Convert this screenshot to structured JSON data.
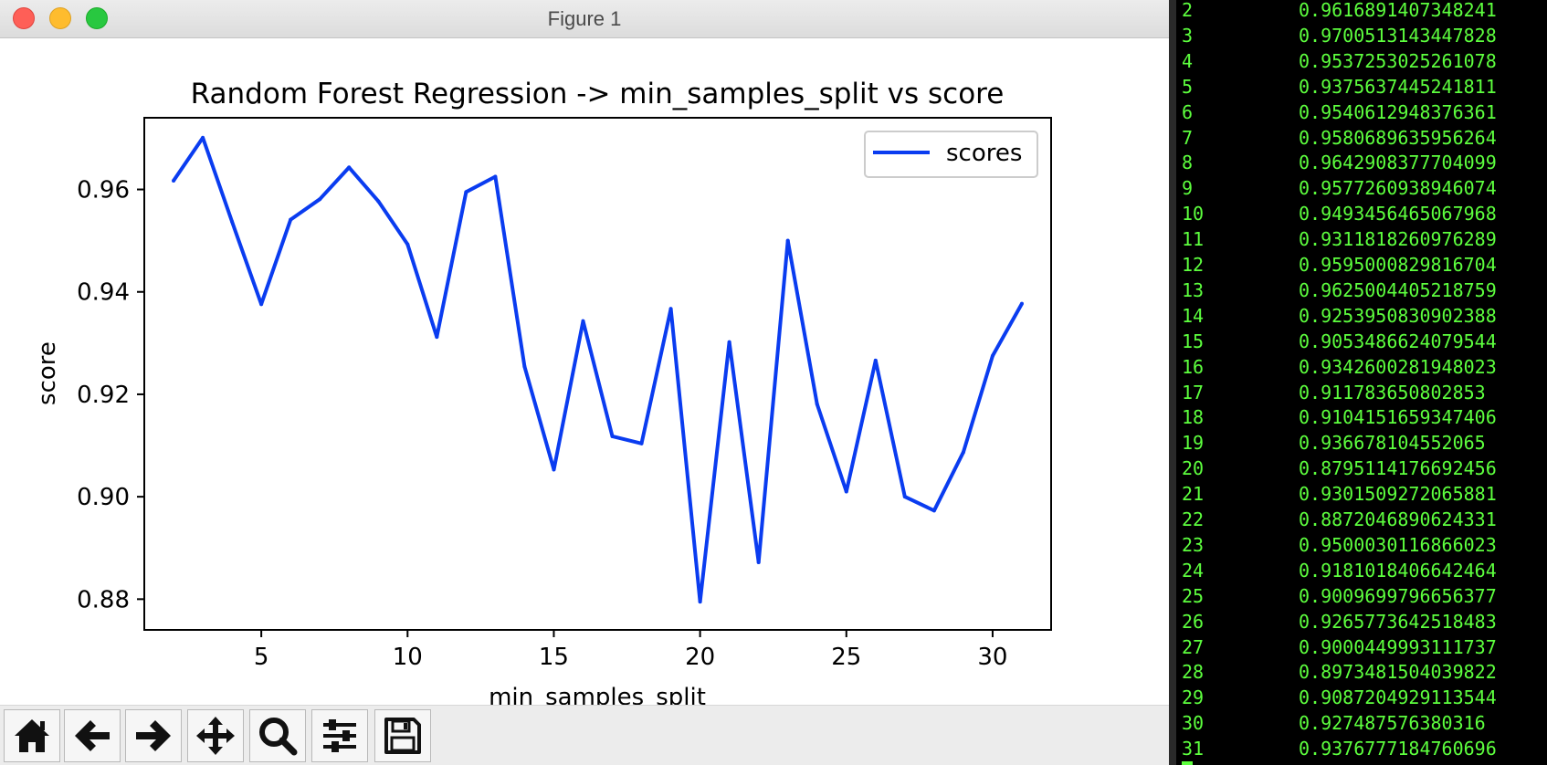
{
  "window": {
    "title": "Figure 1"
  },
  "chart_data": {
    "type": "line",
    "title": "Random Forest Regression -> min_samples_split vs score",
    "xlabel": "min_samples_split",
    "ylabel": "score",
    "xlim": [
      1,
      32
    ],
    "ylim": [
      0.874,
      0.974
    ],
    "xticks": [
      "5",
      "10",
      "15",
      "20",
      "25",
      "30"
    ],
    "yticks": [
      "0.88",
      "0.90",
      "0.92",
      "0.94",
      "0.96"
    ],
    "legend": "top-right",
    "grid": false,
    "color": "#0a3cf0",
    "x": [
      2,
      3,
      4,
      5,
      6,
      7,
      8,
      9,
      10,
      11,
      12,
      13,
      14,
      15,
      16,
      17,
      18,
      19,
      20,
      21,
      22,
      23,
      24,
      25,
      26,
      27,
      28,
      29,
      30,
      31
    ],
    "series": [
      {
        "name": "scores",
        "values": [
          0.9617,
          0.9701,
          0.9537,
          0.9376,
          0.9541,
          0.9581,
          0.9643,
          0.9577,
          0.9493,
          0.9312,
          0.9595,
          0.9625,
          0.9254,
          0.9053,
          0.9343,
          0.9118,
          0.9104,
          0.9367,
          0.8795,
          0.9302,
          0.8872,
          0.95,
          0.9181,
          0.901,
          0.9266,
          0.9,
          0.8973,
          0.9087,
          0.9275,
          0.9377
        ]
      }
    ]
  },
  "toolbar": {
    "buttons": [
      {
        "icon": "home-icon"
      },
      {
        "icon": "back-arrow-icon"
      },
      {
        "icon": "forward-arrow-icon"
      },
      {
        "icon": "pan-move-icon"
      },
      {
        "icon": "zoom-magnifier-icon"
      },
      {
        "icon": "configure-subplots-icon"
      },
      {
        "icon": "save-floppy-icon"
      }
    ]
  },
  "terminal": {
    "color": "#5dff3e",
    "rows": [
      {
        "n": "2",
        "v": "0.9616891407348241"
      },
      {
        "n": "3",
        "v": "0.9700513143447828"
      },
      {
        "n": "4",
        "v": "0.9537253025261078"
      },
      {
        "n": "5",
        "v": "0.9375637445241811"
      },
      {
        "n": "6",
        "v": "0.9540612948376361"
      },
      {
        "n": "7",
        "v": "0.9580689635956264"
      },
      {
        "n": "8",
        "v": "0.9642908377704099"
      },
      {
        "n": "9",
        "v": "0.9577260938946074"
      },
      {
        "n": "10",
        "v": "0.9493456465067968"
      },
      {
        "n": "11",
        "v": "0.9311818260976289"
      },
      {
        "n": "12",
        "v": "0.9595000829816704"
      },
      {
        "n": "13",
        "v": "0.9625004405218759"
      },
      {
        "n": "14",
        "v": "0.9253950830902388"
      },
      {
        "n": "15",
        "v": "0.9053486624079544"
      },
      {
        "n": "16",
        "v": "0.9342600281948023"
      },
      {
        "n": "17",
        "v": "0.911783650802853"
      },
      {
        "n": "18",
        "v": "0.9104151659347406"
      },
      {
        "n": "19",
        "v": "0.936678104552065"
      },
      {
        "n": "20",
        "v": "0.8795114176692456"
      },
      {
        "n": "21",
        "v": "0.9301509272065881"
      },
      {
        "n": "22",
        "v": "0.8872046890624331"
      },
      {
        "n": "23",
        "v": "0.9500030116866023"
      },
      {
        "n": "24",
        "v": "0.9181018406642464"
      },
      {
        "n": "25",
        "v": "0.9009699796656377"
      },
      {
        "n": "26",
        "v": "0.9265773642518483"
      },
      {
        "n": "27",
        "v": "0.9000449993111737"
      },
      {
        "n": "28",
        "v": "0.8973481504039822"
      },
      {
        "n": "29",
        "v": "0.9087204929113544"
      },
      {
        "n": "30",
        "v": "0.927487576380316"
      },
      {
        "n": "31",
        "v": "0.9376777184760696"
      }
    ]
  }
}
